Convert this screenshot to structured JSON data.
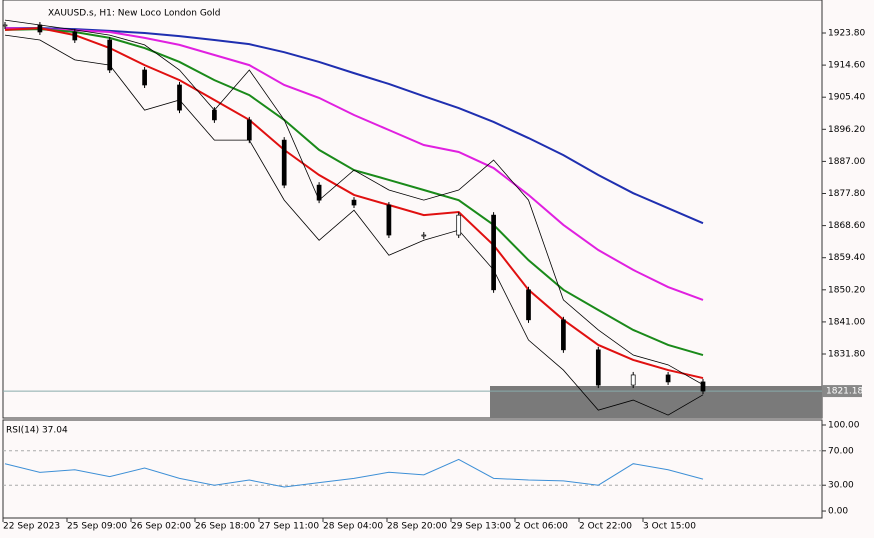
{
  "chart_data": {
    "type": "candlestick",
    "title": "XAUUSD.s, H1:  New Loco London Gold",
    "ylim": [
      1813.46,
      1933.26
    ],
    "yticks": [
      {
        "value": 1923.8,
        "label": "1923.80"
      },
      {
        "value": 1914.6,
        "label": "1914.60"
      },
      {
        "value": 1905.4,
        "label": "1905.40"
      },
      {
        "value": 1896.2,
        "label": "1896.20"
      },
      {
        "value": 1887,
        "label": "1887.00"
      },
      {
        "value": 1877.8,
        "label": "1877.80"
      },
      {
        "value": 1868.6,
        "label": "1868.60"
      },
      {
        "value": 1859.4,
        "label": "1859.40"
      },
      {
        "value": 1850.2,
        "label": "1850.20"
      },
      {
        "value": 1841,
        "label": "1841.00"
      },
      {
        "value": 1831.8,
        "label": "1831.80"
      }
    ],
    "x_labels": [
      "22 Sep 2023",
      "25 Sep 09:00",
      "26 Sep 02:00",
      "26 Sep 18:00",
      "27 Sep 11:00",
      "28 Sep 04:00",
      "28 Sep 20:00",
      "29 Sep 13:00",
      "2 Oct 06:00",
      "2 Oct 22:00",
      "3 Oct 15:00"
    ],
    "close": [
      1926.1,
      1924.1,
      1921.8,
      1913.2,
      1908.9,
      1901.7,
      1898.9,
      1893.1,
      1880.2,
      1875.9,
      1874.5,
      1865.9,
      1865.9,
      1871.6,
      1850.2,
      1841.6,
      1833.0,
      1822.9,
      1825.8,
      1823.8,
      1821.18
    ],
    "current_price_label": "1821.18",
    "series": [
      {
        "color": "#1f2fb0",
        "values": [
          1925.2,
          1925.2,
          1924.9,
          1924.4,
          1923.8,
          1922.9,
          1921.8,
          1920.6,
          1918.3,
          1915.5,
          1912.3,
          1909.2,
          1905.7,
          1902.3,
          1898.3,
          1893.7,
          1888.8,
          1883.1,
          1877.9,
          1873.6,
          1869.3
        ]
      },
      {
        "color": "#e020e0",
        "values": [
          1925.2,
          1924.9,
          1924.6,
          1924.1,
          1922.4,
          1920.4,
          1917.5,
          1914.6,
          1908.9,
          1905.2,
          1900.3,
          1896.0,
          1891.7,
          1889.7,
          1885.1,
          1877.4,
          1868.8,
          1861.6,
          1855.9,
          1851.0,
          1847.3
        ]
      },
      {
        "color": "#1a8a1a",
        "values": [
          1924.7,
          1924.9,
          1924.1,
          1922.4,
          1919.5,
          1915.5,
          1910.3,
          1906.0,
          1898.9,
          1890.3,
          1884.5,
          1881.7,
          1878.8,
          1875.9,
          1868.8,
          1858.7,
          1850.2,
          1844.4,
          1838.7,
          1834.4,
          1831.5
        ]
      },
      {
        "color": "#e01010",
        "values": [
          1924.7,
          1925.2,
          1923.2,
          1919.5,
          1914.6,
          1910.3,
          1904.6,
          1898.9,
          1890.3,
          1883.1,
          1877.4,
          1874.5,
          1871.6,
          1872.5,
          1863.0,
          1850.2,
          1841.6,
          1834.4,
          1830.1,
          1827.2,
          1824.9
        ]
      },
      {
        "color": "#000000",
        "values": [
          1927.5,
          1926.1,
          1924.7,
          1923.2,
          1920.4,
          1913.2,
          1901.7,
          1913.2,
          1898.9,
          1875.9,
          1884.5,
          1878.8,
          1875.9,
          1878.8,
          1887.4,
          1875.9,
          1847.3,
          1838.7,
          1831.5,
          1828.7,
          1823.0
        ]
      },
      {
        "color": "#000000",
        "values": [
          1923.2,
          1921.8,
          1916.1,
          1914.6,
          1901.7,
          1904.6,
          1893.1,
          1893.1,
          1875.9,
          1864.4,
          1873.0,
          1860.1,
          1864.4,
          1867.3,
          1855.9,
          1835.8,
          1827.2,
          1815.7,
          1818.6,
          1814.3,
          1820.1
        ]
      }
    ],
    "rsi": {
      "label": "RSI(14) 37.04",
      "color": "#3d8fd6",
      "ylim": [
        -8.1,
        105.8
      ],
      "yticks": [
        {
          "value": 100,
          "label": "100.00"
        },
        {
          "value": 70,
          "label": "70.00"
        },
        {
          "value": 30,
          "label": "30.00"
        },
        {
          "value": 0,
          "label": "0.00"
        }
      ],
      "values": [
        55,
        45,
        48,
        40,
        50,
        38,
        30,
        36,
        28,
        33,
        38,
        45,
        42,
        60,
        38,
        36,
        35,
        30,
        55,
        48,
        37.04
      ]
    }
  }
}
